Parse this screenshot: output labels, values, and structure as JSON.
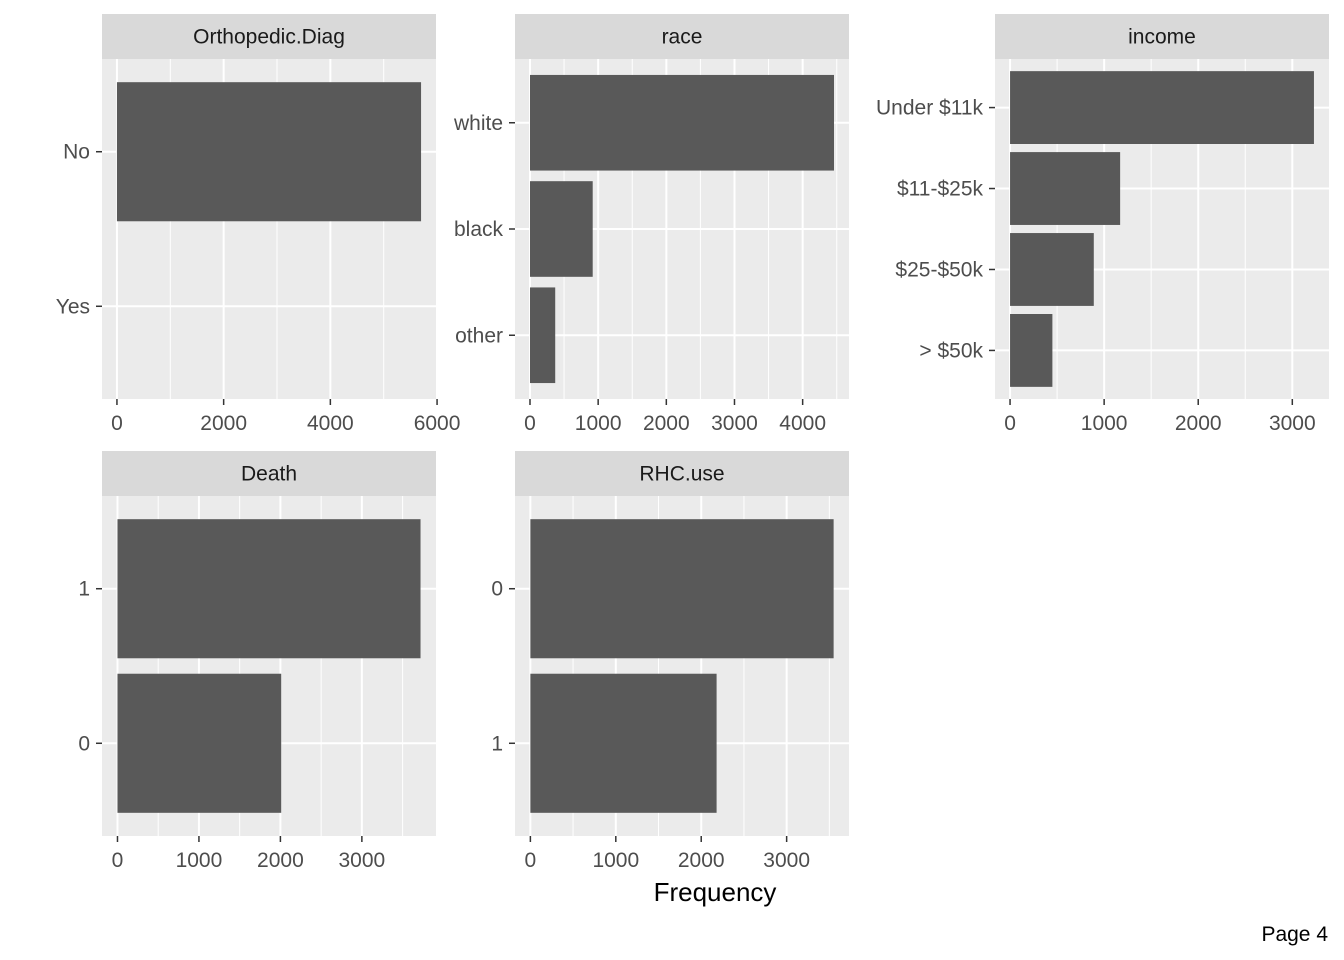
{
  "figure": {
    "xlabel": "Frequency",
    "page_label": "Page 4"
  },
  "colors": {
    "panel_bg": "#EBEBEB",
    "strip_bg": "#D9D9D9",
    "bar": "#595959",
    "grid": "#FFFFFF",
    "tick": "#333333",
    "text": "#4D4D4D"
  },
  "chart_data": [
    {
      "type": "bar",
      "orientation": "horizontal",
      "title": "Orthopedic.Diag",
      "categories": [
        "No",
        "Yes"
      ],
      "values": [
        5700,
        0
      ],
      "xlim": [
        -280,
        5980
      ],
      "xticks": [
        0,
        2000,
        4000,
        6000
      ],
      "xtick_labels": [
        "0",
        "2000",
        "4000",
        "6000"
      ],
      "grid": true
    },
    {
      "type": "bar",
      "orientation": "horizontal",
      "title": "race",
      "categories": [
        "white",
        "black",
        "other"
      ],
      "values": [
        4460,
        920,
        370
      ],
      "xlim": [
        -220,
        4680
      ],
      "xticks": [
        0,
        1000,
        2000,
        3000,
        4000
      ],
      "xtick_labels": [
        "0",
        "1000",
        "2000",
        "3000",
        "4000"
      ],
      "grid": true
    },
    {
      "type": "bar",
      "orientation": "horizontal",
      "title": "income",
      "categories": [
        "Under $11k",
        "$11-$25k",
        "$25-$50k",
        "> $50k"
      ],
      "values": [
        3230,
        1170,
        890,
        450
      ],
      "xlim": [
        -160,
        3390
      ],
      "xticks": [
        0,
        1000,
        2000,
        3000
      ],
      "xtick_labels": [
        "0",
        "1000",
        "2000",
        "3000"
      ],
      "grid": true
    },
    {
      "type": "bar",
      "orientation": "horizontal",
      "title": "Death",
      "categories": [
        "1",
        "0"
      ],
      "values": [
        3720,
        2010
      ],
      "xlim": [
        -190,
        3910
      ],
      "xticks": [
        0,
        1000,
        2000,
        3000
      ],
      "xtick_labels": [
        "0",
        "1000",
        "2000",
        "3000"
      ],
      "grid": true
    },
    {
      "type": "bar",
      "orientation": "horizontal",
      "title": "RHC.use",
      "categories": [
        "0",
        "1"
      ],
      "values": [
        3550,
        2180
      ],
      "xlim": [
        -180,
        3730
      ],
      "xticks": [
        0,
        1000,
        2000,
        3000
      ],
      "xtick_labels": [
        "0",
        "1000",
        "2000",
        "3000"
      ],
      "grid": true
    }
  ]
}
